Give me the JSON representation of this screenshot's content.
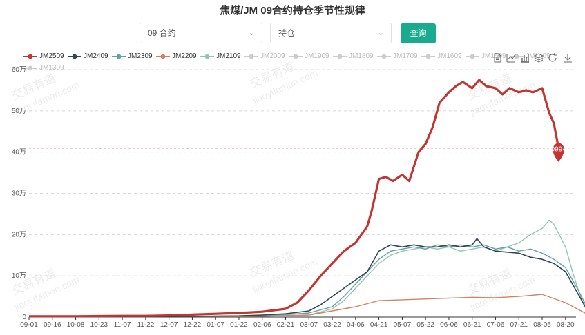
{
  "title": "焦煤/JM 09合约持仓季节性规律",
  "controls": {
    "contract_select": "09 合约",
    "metric_select": "持仓",
    "query_button": "查询"
  },
  "watermark": [
    "交易有道",
    "jiaoyifamen.com"
  ],
  "toolbox_icons": [
    "data-view-icon",
    "line-chart-icon",
    "bar-chart-icon",
    "stack-icon",
    "restore-icon",
    "download-icon"
  ],
  "chart_data": {
    "type": "line",
    "title": "焦煤/JM 09合约持仓季节性规律",
    "x_ticks": [
      "09-01",
      "09-16",
      "10-08",
      "10-23",
      "11-07",
      "11-22",
      "12-07",
      "12-22",
      "01-07",
      "01-22",
      "02-06",
      "02-21",
      "03-07",
      "03-22",
      "04-06",
      "04-21",
      "05-07",
      "05-22",
      "06-06",
      "06-21",
      "07-06",
      "07-21",
      "08-05",
      "08-20"
    ],
    "y_ticks": [
      "0",
      "10万",
      "20万",
      "30万",
      "40万",
      "50万",
      "60万"
    ],
    "ylim": [
      0,
      600000
    ],
    "grid": "horizontal dashed",
    "legend_position": "top",
    "legend": [
      {
        "name": "JM2509",
        "color": "#c23531",
        "active": true
      },
      {
        "name": "JM2409",
        "color": "#2f4554",
        "active": true
      },
      {
        "name": "JM2309",
        "color": "#61a0a8",
        "active": true
      },
      {
        "name": "JM2209",
        "color": "#d48265",
        "active": true
      },
      {
        "name": "JM2109",
        "color": "#91c7ae",
        "active": true
      },
      {
        "name": "JM2009",
        "color": "#cccccc",
        "active": false
      },
      {
        "name": "JM1909",
        "color": "#cccccc",
        "active": false
      },
      {
        "name": "JM1809",
        "color": "#cccccc",
        "active": false
      },
      {
        "name": "JM1709",
        "color": "#cccccc",
        "active": false
      },
      {
        "name": "JM1609",
        "color": "#cccccc",
        "active": false
      },
      {
        "name": "JM1509",
        "color": "#cccccc",
        "active": false
      },
      {
        "name": "JM1409",
        "color": "#cccccc",
        "active": false
      },
      {
        "name": "JM1309",
        "color": "#cccccc",
        "active": false
      }
    ],
    "mark_line": {
      "series": "JM2509",
      "value": 409942
    },
    "mark_point": {
      "series": "JM2509",
      "label": "409942",
      "x": 22.7,
      "y": 409942
    },
    "series": [
      {
        "name": "JM2509",
        "color": "#c23531",
        "width": 3.2,
        "points": [
          [
            0,
            2000
          ],
          [
            1,
            2000
          ],
          [
            2,
            2000
          ],
          [
            3,
            2500
          ],
          [
            4,
            3000
          ],
          [
            5,
            3000
          ],
          [
            6,
            4000
          ],
          [
            7,
            6000
          ],
          [
            8,
            8000
          ],
          [
            9,
            10000
          ],
          [
            10,
            13000
          ],
          [
            11,
            20000
          ],
          [
            11.5,
            35000
          ],
          [
            12,
            65000
          ],
          [
            12.5,
            100000
          ],
          [
            13,
            130000
          ],
          [
            13.5,
            160000
          ],
          [
            14,
            180000
          ],
          [
            14.5,
            220000
          ],
          [
            14.7,
            260000
          ],
          [
            15,
            335000
          ],
          [
            15.3,
            340000
          ],
          [
            15.6,
            330000
          ],
          [
            16,
            345000
          ],
          [
            16.3,
            330000
          ],
          [
            16.7,
            400000
          ],
          [
            17,
            420000
          ],
          [
            17.3,
            460000
          ],
          [
            17.6,
            520000
          ],
          [
            18,
            545000
          ],
          [
            18.3,
            560000
          ],
          [
            18.6,
            570000
          ],
          [
            19,
            555000
          ],
          [
            19.3,
            575000
          ],
          [
            19.6,
            560000
          ],
          [
            20,
            555000
          ],
          [
            20.3,
            540000
          ],
          [
            20.6,
            555000
          ],
          [
            21,
            545000
          ],
          [
            21.3,
            550000
          ],
          [
            21.6,
            545000
          ],
          [
            22,
            555000
          ],
          [
            22.3,
            495000
          ],
          [
            22.5,
            470000
          ],
          [
            22.7,
            409942
          ]
        ]
      },
      {
        "name": "JM2409",
        "color": "#2f4554",
        "width": 1.6,
        "points": [
          [
            0,
            3000
          ],
          [
            0.7,
            1000
          ],
          [
            1,
            1000
          ],
          [
            3,
            1000
          ],
          [
            5,
            1000
          ],
          [
            7,
            1500
          ],
          [
            9,
            3000
          ],
          [
            10,
            5000
          ],
          [
            11,
            8000
          ],
          [
            12,
            15000
          ],
          [
            12.5,
            30000
          ],
          [
            13,
            50000
          ],
          [
            13.5,
            70000
          ],
          [
            14,
            90000
          ],
          [
            14.5,
            110000
          ],
          [
            15,
            160000
          ],
          [
            15.5,
            175000
          ],
          [
            16,
            170000
          ],
          [
            16.5,
            175000
          ],
          [
            17,
            170000
          ],
          [
            17.5,
            170000
          ],
          [
            18,
            175000
          ],
          [
            18.5,
            170000
          ],
          [
            19,
            175000
          ],
          [
            19.2,
            190000
          ],
          [
            19.5,
            170000
          ],
          [
            20,
            160000
          ],
          [
            21,
            155000
          ],
          [
            21.5,
            145000
          ],
          [
            22,
            140000
          ],
          [
            22.5,
            130000
          ],
          [
            23,
            110000
          ],
          [
            23.5,
            60000
          ],
          [
            24,
            10000
          ]
        ]
      },
      {
        "name": "JM2309",
        "color": "#61a0a8",
        "width": 1.4,
        "points": [
          [
            0,
            2000
          ],
          [
            3,
            1000
          ],
          [
            6,
            1500
          ],
          [
            9,
            3000
          ],
          [
            11,
            6000
          ],
          [
            12,
            10000
          ],
          [
            13,
            25000
          ],
          [
            13.5,
            50000
          ],
          [
            14,
            80000
          ],
          [
            14.5,
            110000
          ],
          [
            15,
            140000
          ],
          [
            15.5,
            160000
          ],
          [
            16,
            165000
          ],
          [
            16.5,
            170000
          ],
          [
            17,
            165000
          ],
          [
            17.5,
            175000
          ],
          [
            18,
            170000
          ],
          [
            18.5,
            175000
          ],
          [
            19,
            170000
          ],
          [
            19.5,
            175000
          ],
          [
            20,
            165000
          ],
          [
            20.5,
            170000
          ],
          [
            21,
            160000
          ],
          [
            21.5,
            165000
          ],
          [
            22,
            155000
          ],
          [
            22.5,
            140000
          ],
          [
            23,
            120000
          ],
          [
            23.5,
            70000
          ],
          [
            24,
            15000
          ]
        ]
      },
      {
        "name": "JM2209",
        "color": "#d48265",
        "width": 1.4,
        "points": [
          [
            0,
            1000
          ],
          [
            5,
            1000
          ],
          [
            10,
            2000
          ],
          [
            12,
            5000
          ],
          [
            13,
            15000
          ],
          [
            14,
            25000
          ],
          [
            15,
            40000
          ],
          [
            16,
            42000
          ],
          [
            17,
            44000
          ],
          [
            18,
            46000
          ],
          [
            19,
            48000
          ],
          [
            20,
            47000
          ],
          [
            21,
            50000
          ],
          [
            22,
            55000
          ],
          [
            22.5,
            45000
          ],
          [
            23,
            35000
          ],
          [
            23.5,
            20000
          ],
          [
            24,
            5000
          ]
        ]
      },
      {
        "name": "JM2109",
        "color": "#91c7ae",
        "width": 1.4,
        "points": [
          [
            0,
            1000
          ],
          [
            5,
            1000
          ],
          [
            10,
            2000
          ],
          [
            12,
            5000
          ],
          [
            13,
            20000
          ],
          [
            13.5,
            40000
          ],
          [
            14,
            70000
          ],
          [
            14.5,
            100000
          ],
          [
            15,
            130000
          ],
          [
            15.5,
            150000
          ],
          [
            16,
            160000
          ],
          [
            16.5,
            165000
          ],
          [
            17,
            170000
          ],
          [
            17.5,
            165000
          ],
          [
            18,
            170000
          ],
          [
            18.5,
            160000
          ],
          [
            19,
            165000
          ],
          [
            19.5,
            170000
          ],
          [
            20,
            160000
          ],
          [
            20.5,
            170000
          ],
          [
            21,
            180000
          ],
          [
            21.5,
            200000
          ],
          [
            22,
            215000
          ],
          [
            22.3,
            235000
          ],
          [
            22.5,
            225000
          ],
          [
            23,
            170000
          ],
          [
            23.3,
            110000
          ],
          [
            23.7,
            40000
          ],
          [
            24,
            5000
          ]
        ]
      }
    ]
  }
}
